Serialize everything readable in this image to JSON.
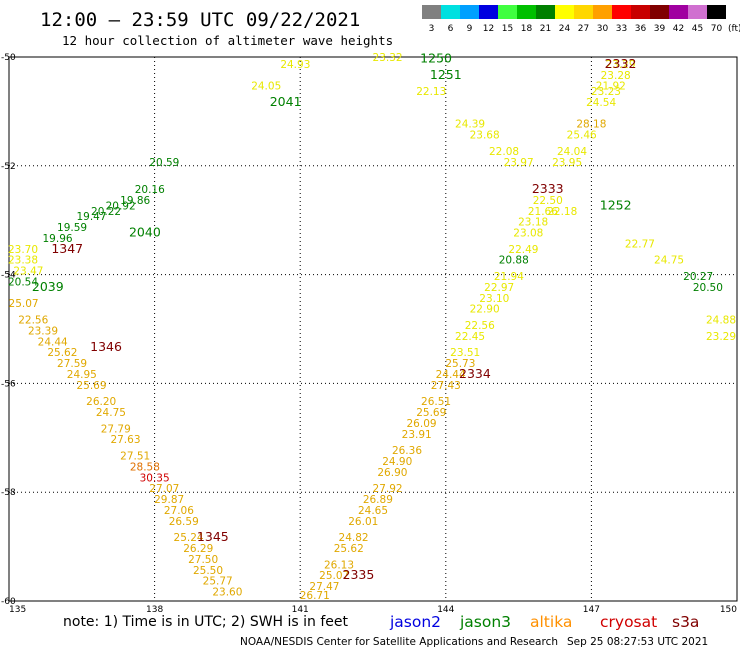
{
  "header": {
    "title": "12:00 – 23:59 UTC 09/22/2021",
    "subtitle": "12 hour collection of altimeter wave heights"
  },
  "legend": {
    "unit": "(ft)",
    "bins": [
      {
        "label": "3",
        "color": "#808080"
      },
      {
        "label": "6",
        "color": "#00e0e0"
      },
      {
        "label": "9",
        "color": "#00a0ff"
      },
      {
        "label": "12",
        "color": "#0000e0"
      },
      {
        "label": "15",
        "color": "#40ff40"
      },
      {
        "label": "18",
        "color": "#00c000"
      },
      {
        "label": "21",
        "color": "#008000"
      },
      {
        "label": "24",
        "color": "#ffff00"
      },
      {
        "label": "27",
        "color": "#ffd700"
      },
      {
        "label": "30",
        "color": "#ffa000"
      },
      {
        "label": "33",
        "color": "#ff0000"
      },
      {
        "label": "36",
        "color": "#c80000"
      },
      {
        "label": "39",
        "color": "#800000"
      },
      {
        "label": "42",
        "color": "#a000a0"
      },
      {
        "label": "45",
        "color": "#d070d0"
      },
      {
        "label": "70",
        "color": "#000000"
      }
    ]
  },
  "axes": {
    "lon_ticks": [
      "135",
      "138",
      "141",
      "144",
      "147",
      "150"
    ],
    "lat_ticks": [
      "-50",
      "-52",
      "-54",
      "-56",
      "-58",
      "-60"
    ]
  },
  "colors": {
    "yellow": "#e8e800",
    "gold": "#e0a800",
    "orange": "#e07000",
    "red": "#d00000",
    "green": "#008000",
    "darkred": "#800000",
    "jason2": "#0000e0",
    "jason3": "#008000",
    "altika": "#ff9000",
    "cryosat": "#d00000",
    "s3a": "#800000"
  },
  "time_labels": [
    {
      "text": "1347",
      "lon": 136.2,
      "lat": -53.6,
      "c": "darkred"
    },
    {
      "text": "1346",
      "lon": 137.0,
      "lat": -55.4,
      "c": "darkred"
    },
    {
      "text": "1345",
      "lon": 139.2,
      "lat": -58.9,
      "c": "darkred"
    },
    {
      "text": "2335",
      "lon": 142.2,
      "lat": -59.6,
      "c": "darkred"
    },
    {
      "text": "2334",
      "lon": 144.6,
      "lat": -55.9,
      "c": "darkred"
    },
    {
      "text": "2333",
      "lon": 146.1,
      "lat": -52.5,
      "c": "darkred"
    },
    {
      "text": "2332",
      "lon": 147.6,
      "lat": -50.2,
      "c": "darkred"
    },
    {
      "text": "1252",
      "lon": 147.5,
      "lat": -52.8,
      "c": "green"
    },
    {
      "text": "1251",
      "lon": 144.0,
      "lat": -50.4,
      "c": "green"
    },
    {
      "text": "1250",
      "lon": 143.8,
      "lat": -50.1,
      "c": "green"
    },
    {
      "text": "2039",
      "lon": 135.8,
      "lat": -54.3,
      "c": "green"
    },
    {
      "text": "2040",
      "lon": 137.8,
      "lat": -53.3,
      "c": "green"
    },
    {
      "text": "2041",
      "lon": 140.7,
      "lat": -50.9,
      "c": "green"
    }
  ],
  "tracks": [
    {
      "name": "track-2040",
      "points": [
        {
          "v": "23.70",
          "lon": 135.0,
          "lat": -53.6,
          "c": "yellow"
        },
        {
          "v": "23.38",
          "lon": 135.2,
          "lat": -53.8,
          "c": "yellow"
        },
        {
          "v": "23.47",
          "lon": 135.4,
          "lat": -54.0,
          "c": "yellow"
        },
        {
          "v": "20.54",
          "lon": 135.0,
          "lat": -54.2,
          "c": "green"
        },
        {
          "v": "19.96",
          "lon": 136.0,
          "lat": -53.4,
          "c": "green"
        },
        {
          "v": "19.59",
          "lon": 136.3,
          "lat": -53.2,
          "c": "green"
        },
        {
          "v": "19.47",
          "lon": 136.7,
          "lat": -53.0,
          "c": "green"
        },
        {
          "v": "20.22",
          "lon": 137.0,
          "lat": -52.9,
          "c": "green"
        },
        {
          "v": "20.92",
          "lon": 137.3,
          "lat": -52.8,
          "c": "green"
        },
        {
          "v": "19.86",
          "lon": 137.6,
          "lat": -52.7,
          "c": "green"
        },
        {
          "v": "20.16",
          "lon": 137.9,
          "lat": -52.5,
          "c": "green"
        },
        {
          "v": "20.59",
          "lon": 138.2,
          "lat": -52.0,
          "c": "green"
        },
        {
          "v": "24.05",
          "lon": 140.3,
          "lat": -50.6,
          "c": "yellow"
        },
        {
          "v": "24.93",
          "lon": 140.9,
          "lat": -50.2,
          "c": "yellow"
        }
      ]
    },
    {
      "name": "track-1346",
      "points": [
        {
          "v": "25.07",
          "lon": 135.3,
          "lat": -54.6,
          "c": "gold"
        },
        {
          "v": "22.56",
          "lon": 135.5,
          "lat": -54.9,
          "c": "gold"
        },
        {
          "v": "23.39",
          "lon": 135.7,
          "lat": -55.1,
          "c": "gold"
        },
        {
          "v": "24.44",
          "lon": 135.9,
          "lat": -55.3,
          "c": "gold"
        },
        {
          "v": "25.62",
          "lon": 136.1,
          "lat": -55.5,
          "c": "gold"
        },
        {
          "v": "27.59",
          "lon": 136.3,
          "lat": -55.7,
          "c": "gold"
        },
        {
          "v": "24.95",
          "lon": 136.5,
          "lat": -55.9,
          "c": "gold"
        },
        {
          "v": "25.69",
          "lon": 136.7,
          "lat": -56.1,
          "c": "gold"
        },
        {
          "v": "26.20",
          "lon": 136.9,
          "lat": -56.4,
          "c": "gold"
        },
        {
          "v": "24.75",
          "lon": 137.1,
          "lat": -56.6,
          "c": "gold"
        },
        {
          "v": "27.79",
          "lon": 137.2,
          "lat": -56.9,
          "c": "gold"
        },
        {
          "v": "27.63",
          "lon": 137.4,
          "lat": -57.1,
          "c": "gold"
        },
        {
          "v": "27.51",
          "lon": 137.6,
          "lat": -57.4,
          "c": "gold"
        },
        {
          "v": "28.58",
          "lon": 137.8,
          "lat": -57.6,
          "c": "orange"
        },
        {
          "v": "30.35",
          "lon": 138.0,
          "lat": -57.8,
          "c": "red"
        },
        {
          "v": "27.07",
          "lon": 138.2,
          "lat": -58.0,
          "c": "gold"
        },
        {
          "v": "29.87",
          "lon": 138.3,
          "lat": -58.2,
          "c": "gold"
        },
        {
          "v": "27.06",
          "lon": 138.5,
          "lat": -58.4,
          "c": "gold"
        },
        {
          "v": "26.59",
          "lon": 138.6,
          "lat": -58.6,
          "c": "gold"
        },
        {
          "v": "25.24",
          "lon": 138.7,
          "lat": -58.9,
          "c": "gold"
        },
        {
          "v": "26.29",
          "lon": 138.9,
          "lat": -59.1,
          "c": "gold"
        },
        {
          "v": "27.50",
          "lon": 139.0,
          "lat": -59.3,
          "c": "gold"
        },
        {
          "v": "25.50",
          "lon": 139.1,
          "lat": -59.5,
          "c": "gold"
        },
        {
          "v": "25.77",
          "lon": 139.3,
          "lat": -59.7,
          "c": "gold"
        },
        {
          "v": "23.60",
          "lon": 139.5,
          "lat": -59.9,
          "c": "gold"
        }
      ]
    },
    {
      "name": "track-2334",
      "points": [
        {
          "v": "26.71",
          "lon": 141.3,
          "lat": -60.0,
          "c": "gold"
        },
        {
          "v": "27.47",
          "lon": 141.5,
          "lat": -59.8,
          "c": "gold"
        },
        {
          "v": "25.07",
          "lon": 141.7,
          "lat": -59.6,
          "c": "gold"
        },
        {
          "v": "26.13",
          "lon": 141.8,
          "lat": -59.4,
          "c": "gold"
        },
        {
          "v": "25.62",
          "lon": 142.0,
          "lat": -59.1,
          "c": "gold"
        },
        {
          "v": "24.82",
          "lon": 142.1,
          "lat": -58.9,
          "c": "gold"
        },
        {
          "v": "26.01",
          "lon": 142.3,
          "lat": -58.6,
          "c": "gold"
        },
        {
          "v": "24.65",
          "lon": 142.5,
          "lat": -58.4,
          "c": "gold"
        },
        {
          "v": "26.89",
          "lon": 142.6,
          "lat": -58.2,
          "c": "gold"
        },
        {
          "v": "27.92",
          "lon": 142.8,
          "lat": -58.0,
          "c": "gold"
        },
        {
          "v": "26.90",
          "lon": 142.9,
          "lat": -57.7,
          "c": "gold"
        },
        {
          "v": "24.90",
          "lon": 143.0,
          "lat": -57.5,
          "c": "gold"
        },
        {
          "v": "26.36",
          "lon": 143.2,
          "lat": -57.3,
          "c": "gold"
        },
        {
          "v": "23.91",
          "lon": 143.4,
          "lat": -57.0,
          "c": "gold"
        },
        {
          "v": "26.09",
          "lon": 143.5,
          "lat": -56.8,
          "c": "gold"
        },
        {
          "v": "25.69",
          "lon": 143.7,
          "lat": -56.6,
          "c": "gold"
        },
        {
          "v": "26.51",
          "lon": 143.8,
          "lat": -56.4,
          "c": "gold"
        },
        {
          "v": "27.43",
          "lon": 144.0,
          "lat": -56.1,
          "c": "gold"
        },
        {
          "v": "24.44",
          "lon": 144.1,
          "lat": -55.9,
          "c": "gold"
        },
        {
          "v": "25.73",
          "lon": 144.3,
          "lat": -55.7,
          "c": "gold"
        },
        {
          "v": "23.51",
          "lon": 144.4,
          "lat": -55.5,
          "c": "yellow"
        },
        {
          "v": "22.45",
          "lon": 144.5,
          "lat": -55.2,
          "c": "yellow"
        },
        {
          "v": "22.56",
          "lon": 144.7,
          "lat": -55.0,
          "c": "yellow"
        },
        {
          "v": "22.90",
          "lon": 144.8,
          "lat": -54.7,
          "c": "yellow"
        },
        {
          "v": "23.10",
          "lon": 145.0,
          "lat": -54.5,
          "c": "yellow"
        },
        {
          "v": "22.97",
          "lon": 145.1,
          "lat": -54.3,
          "c": "yellow"
        },
        {
          "v": "21.94",
          "lon": 145.3,
          "lat": -54.1,
          "c": "yellow"
        },
        {
          "v": "20.88",
          "lon": 145.4,
          "lat": -53.8,
          "c": "green"
        },
        {
          "v": "22.49",
          "lon": 145.6,
          "lat": -53.6,
          "c": "yellow"
        },
        {
          "v": "23.08",
          "lon": 145.7,
          "lat": -53.3,
          "c": "yellow"
        },
        {
          "v": "23.18",
          "lon": 145.8,
          "lat": -53.1,
          "c": "yellow"
        },
        {
          "v": "21.66",
          "lon": 146.0,
          "lat": -52.9,
          "c": "yellow"
        },
        {
          "v": "22.50",
          "lon": 146.1,
          "lat": -52.7,
          "c": "yellow"
        },
        {
          "v": "23.95",
          "lon": 146.5,
          "lat": -52.0,
          "c": "yellow"
        },
        {
          "v": "24.04",
          "lon": 146.6,
          "lat": -51.8,
          "c": "yellow"
        },
        {
          "v": "25.46",
          "lon": 146.8,
          "lat": -51.5,
          "c": "yellow"
        },
        {
          "v": "28.18",
          "lon": 147.0,
          "lat": -51.3,
          "c": "gold"
        },
        {
          "v": "24.54",
          "lon": 147.2,
          "lat": -50.9,
          "c": "yellow"
        },
        {
          "v": "23.23",
          "lon": 147.3,
          "lat": -50.7,
          "c": "yellow"
        },
        {
          "v": "21.92",
          "lon": 147.4,
          "lat": -50.6,
          "c": "yellow"
        },
        {
          "v": "23.28",
          "lon": 147.5,
          "lat": -50.4,
          "c": "yellow"
        },
        {
          "v": "23.29",
          "lon": 147.6,
          "lat": -50.2,
          "c": "yellow"
        }
      ]
    },
    {
      "name": "track-1251",
      "points": [
        {
          "v": "23.32",
          "lon": 142.8,
          "lat": -50.0,
          "c": "yellow"
        },
        {
          "v": "22.13",
          "lon": 143.7,
          "lat": -50.7,
          "c": "yellow"
        },
        {
          "v": "24.39",
          "lon": 144.5,
          "lat": -51.3,
          "c": "yellow"
        },
        {
          "v": "23.68",
          "lon": 144.8,
          "lat": -51.5,
          "c": "yellow"
        },
        {
          "v": "22.08",
          "lon": 145.2,
          "lat": -51.8,
          "c": "yellow"
        },
        {
          "v": "23.97",
          "lon": 145.5,
          "lat": -52.0,
          "c": "yellow"
        },
        {
          "v": "22.18",
          "lon": 146.4,
          "lat": -52.9,
          "c": "yellow"
        },
        {
          "v": "22.77",
          "lon": 148.0,
          "lat": -53.5,
          "c": "yellow"
        },
        {
          "v": "24.75",
          "lon": 148.6,
          "lat": -53.8,
          "c": "yellow"
        },
        {
          "v": "20.27",
          "lon": 149.2,
          "lat": -54.1,
          "c": "green"
        },
        {
          "v": "20.50",
          "lon": 149.4,
          "lat": -54.3,
          "c": "green"
        },
        {
          "v": "24.88",
          "lon": 150.0,
          "lat": -54.9,
          "c": "yellow"
        },
        {
          "v": "23.29",
          "lon": 150.0,
          "lat": -55.2,
          "c": "yellow"
        }
      ]
    }
  ],
  "note": "note:  1) Time is in UTC; 2) SWH is in feet",
  "satellites": [
    {
      "name": "jason2",
      "c": "jason2"
    },
    {
      "name": "jason3",
      "c": "jason3"
    },
    {
      "name": "altika",
      "c": "altika"
    },
    {
      "name": "cryosat",
      "c": "cryosat"
    },
    {
      "name": "s3a",
      "c": "s3a"
    }
  ],
  "credit": "NOAA/NESDIS Center for Satellite Applications and Research",
  "timestamp": "Sep 25 08:27:53 UTC 2021"
}
